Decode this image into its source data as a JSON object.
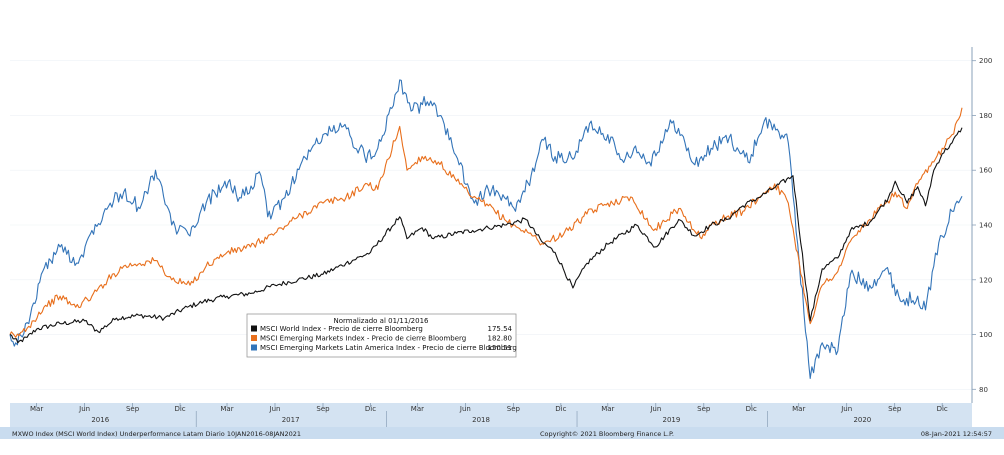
{
  "chart_data": {
    "type": "line",
    "legend_title": "Normalizado al 01/11/2016",
    "legend_placement": "center-left",
    "y_axis_side": "right",
    "ylim": [
      75,
      205
    ],
    "y_ticks": [
      80,
      100,
      120,
      140,
      160,
      180,
      200
    ],
    "x_range": [
      "2016-01-10",
      "2021-01-08"
    ],
    "x_month_ticks": [
      {
        "label": "Mar",
        "date": "2016-03-01"
      },
      {
        "label": "Jun",
        "date": "2016-06-01"
      },
      {
        "label": "Sep",
        "date": "2016-09-01"
      },
      {
        "label": "Dic",
        "date": "2016-12-01"
      },
      {
        "label": "Mar",
        "date": "2017-03-01"
      },
      {
        "label": "Jun",
        "date": "2017-06-01"
      },
      {
        "label": "Sep",
        "date": "2017-09-01"
      },
      {
        "label": "Dic",
        "date": "2017-12-01"
      },
      {
        "label": "Mar",
        "date": "2018-03-01"
      },
      {
        "label": "Jun",
        "date": "2018-06-01"
      },
      {
        "label": "Sep",
        "date": "2018-09-01"
      },
      {
        "label": "Dic",
        "date": "2018-12-01"
      },
      {
        "label": "Mar",
        "date": "2019-03-01"
      },
      {
        "label": "Jun",
        "date": "2019-06-01"
      },
      {
        "label": "Sep",
        "date": "2019-09-01"
      },
      {
        "label": "Dic",
        "date": "2019-12-01"
      },
      {
        "label": "Mar",
        "date": "2020-03-01"
      },
      {
        "label": "Jun",
        "date": "2020-06-01"
      },
      {
        "label": "Sep",
        "date": "2020-09-01"
      },
      {
        "label": "Dic",
        "date": "2020-12-01"
      }
    ],
    "x_year_labels": [
      {
        "label": "2016",
        "date": "2016-07-01"
      },
      {
        "label": "2017",
        "date": "2017-07-01"
      },
      {
        "label": "2018",
        "date": "2018-07-01"
      },
      {
        "label": "2019",
        "date": "2019-07-01"
      },
      {
        "label": "2020",
        "date": "2020-07-01"
      }
    ],
    "series": [
      {
        "name": "MSCI World Index - Precio de cierre Bloomberg",
        "last_value": "175.54",
        "color": "#111111",
        "points": [
          [
            "2016-01-10",
            100
          ],
          [
            "2016-01-25",
            97
          ],
          [
            "2016-02-12",
            99
          ],
          [
            "2016-03-01",
            102
          ],
          [
            "2016-04-15",
            104
          ],
          [
            "2016-06-01",
            105
          ],
          [
            "2016-06-27",
            101
          ],
          [
            "2016-08-01",
            106
          ],
          [
            "2016-09-15",
            107
          ],
          [
            "2016-11-01",
            106
          ],
          [
            "2016-12-15",
            110
          ],
          [
            "2017-01-15",
            112
          ],
          [
            "2017-03-01",
            114
          ],
          [
            "2017-04-15",
            115
          ],
          [
            "2017-06-01",
            118
          ],
          [
            "2017-07-15",
            120
          ],
          [
            "2017-09-01",
            122
          ],
          [
            "2017-10-15",
            126
          ],
          [
            "2017-12-01",
            130
          ],
          [
            "2018-01-26",
            143
          ],
          [
            "2018-02-09",
            135
          ],
          [
            "2018-03-10",
            139
          ],
          [
            "2018-04-01",
            135
          ],
          [
            "2018-05-15",
            137
          ],
          [
            "2018-06-15",
            138
          ],
          [
            "2018-07-15",
            139
          ],
          [
            "2018-08-15",
            140
          ],
          [
            "2018-09-25",
            142
          ],
          [
            "2018-10-25",
            134
          ],
          [
            "2018-11-20",
            130
          ],
          [
            "2018-12-24",
            117
          ],
          [
            "2019-01-20",
            126
          ],
          [
            "2019-03-01",
            133
          ],
          [
            "2019-04-25",
            140
          ],
          [
            "2019-05-31",
            132
          ],
          [
            "2019-07-15",
            142
          ],
          [
            "2019-08-15",
            136
          ],
          [
            "2019-09-15",
            140
          ],
          [
            "2019-10-15",
            142
          ],
          [
            "2019-11-15",
            147
          ],
          [
            "2019-12-15",
            150
          ],
          [
            "2020-01-17",
            154
          ],
          [
            "2020-02-19",
            158
          ],
          [
            "2020-03-23",
            105
          ],
          [
            "2020-04-15",
            124
          ],
          [
            "2020-05-15",
            128
          ],
          [
            "2020-06-08",
            138
          ],
          [
            "2020-07-15",
            141
          ],
          [
            "2020-08-20",
            150
          ],
          [
            "2020-09-02",
            156
          ],
          [
            "2020-09-25",
            148
          ],
          [
            "2020-10-15",
            154
          ],
          [
            "2020-10-30",
            147
          ],
          [
            "2020-11-15",
            160
          ],
          [
            "2020-12-01",
            166
          ],
          [
            "2020-12-20",
            170
          ],
          [
            "2021-01-08",
            175.54
          ]
        ]
      },
      {
        "name": "MSCI Emerging Markets Index - Precio de cierre Bloomberg",
        "last_value": "182.80",
        "color": "#e86f1c",
        "points": [
          [
            "2016-01-10",
            100
          ],
          [
            "2016-01-21",
            99
          ],
          [
            "2016-02-15",
            103
          ],
          [
            "2016-03-15",
            110
          ],
          [
            "2016-04-15",
            114
          ],
          [
            "2016-05-15",
            110
          ],
          [
            "2016-06-15",
            114
          ],
          [
            "2016-07-15",
            120
          ],
          [
            "2016-08-15",
            125
          ],
          [
            "2016-09-15",
            126
          ],
          [
            "2016-10-15",
            127
          ],
          [
            "2016-11-15",
            120
          ],
          [
            "2016-12-20",
            118
          ],
          [
            "2017-01-20",
            125
          ],
          [
            "2017-03-01",
            130
          ],
          [
            "2017-04-15",
            132
          ],
          [
            "2017-06-01",
            137
          ],
          [
            "2017-07-15",
            143
          ],
          [
            "2017-09-01",
            148
          ],
          [
            "2017-10-15",
            150
          ],
          [
            "2017-11-25",
            155
          ],
          [
            "2017-12-15",
            153
          ],
          [
            "2018-01-26",
            176
          ],
          [
            "2018-02-09",
            160
          ],
          [
            "2018-03-10",
            165
          ],
          [
            "2018-04-10",
            163
          ],
          [
            "2018-05-15",
            156
          ],
          [
            "2018-06-15",
            150
          ],
          [
            "2018-07-15",
            147
          ],
          [
            "2018-08-15",
            142
          ],
          [
            "2018-09-10",
            139
          ],
          [
            "2018-10-10",
            136
          ],
          [
            "2018-10-29",
            133
          ],
          [
            "2018-12-15",
            138
          ],
          [
            "2019-01-20",
            144
          ],
          [
            "2019-03-01",
            148
          ],
          [
            "2019-04-17",
            150
          ],
          [
            "2019-05-28",
            138
          ],
          [
            "2019-07-15",
            146
          ],
          [
            "2019-08-28",
            135
          ],
          [
            "2019-09-15",
            140
          ],
          [
            "2019-10-15",
            143
          ],
          [
            "2019-11-15",
            145
          ],
          [
            "2019-12-15",
            150
          ],
          [
            "2020-01-15",
            155
          ],
          [
            "2020-02-10",
            148
          ],
          [
            "2020-03-23",
            104
          ],
          [
            "2020-04-15",
            118
          ],
          [
            "2020-05-15",
            123
          ],
          [
            "2020-06-08",
            134
          ],
          [
            "2020-07-15",
            142
          ],
          [
            "2020-08-15",
            148
          ],
          [
            "2020-09-02",
            152
          ],
          [
            "2020-09-25",
            146
          ],
          [
            "2020-10-15",
            155
          ],
          [
            "2020-11-15",
            163
          ],
          [
            "2020-12-01",
            168
          ],
          [
            "2020-12-20",
            173
          ],
          [
            "2021-01-08",
            182.8
          ]
        ]
      },
      {
        "name": "MSCI Emerging Markets Latin America Index - Precio de cierre Bloomberg",
        "last_value": "150.51",
        "color": "#3374b8",
        "points": [
          [
            "2016-01-10",
            100
          ],
          [
            "2016-01-21",
            97
          ],
          [
            "2016-02-15",
            104
          ],
          [
            "2016-03-10",
            122
          ],
          [
            "2016-04-15",
            132
          ],
          [
            "2016-05-20",
            126
          ],
          [
            "2016-06-15",
            138
          ],
          [
            "2016-07-20",
            148
          ],
          [
            "2016-08-15",
            152
          ],
          [
            "2016-09-15",
            146
          ],
          [
            "2016-10-15",
            160
          ],
          [
            "2016-11-15",
            140
          ],
          [
            "2016-12-20",
            136
          ],
          [
            "2017-01-20",
            148
          ],
          [
            "2017-02-25",
            156
          ],
          [
            "2017-03-25",
            150
          ],
          [
            "2017-05-05",
            158
          ],
          [
            "2017-05-18",
            143
          ],
          [
            "2017-06-20",
            150
          ],
          [
            "2017-07-20",
            162
          ],
          [
            "2017-09-01",
            173
          ],
          [
            "2017-10-10",
            176
          ],
          [
            "2017-11-20",
            165
          ],
          [
            "2017-12-15",
            168
          ],
          [
            "2018-01-26",
            193
          ],
          [
            "2018-02-20",
            182
          ],
          [
            "2018-03-20",
            185
          ],
          [
            "2018-04-15",
            180
          ],
          [
            "2018-05-20",
            162
          ],
          [
            "2018-06-18",
            148
          ],
          [
            "2018-07-15",
            153
          ],
          [
            "2018-08-15",
            150
          ],
          [
            "2018-09-05",
            145
          ],
          [
            "2018-10-05",
            158
          ],
          [
            "2018-10-29",
            171
          ],
          [
            "2018-11-20",
            165
          ],
          [
            "2018-12-24",
            164
          ],
          [
            "2019-01-25",
            177
          ],
          [
            "2019-03-01",
            173
          ],
          [
            "2019-03-25",
            164
          ],
          [
            "2019-04-20",
            168
          ],
          [
            "2019-05-20",
            163
          ],
          [
            "2019-07-05",
            178
          ],
          [
            "2019-08-15",
            162
          ],
          [
            "2019-09-15",
            168
          ],
          [
            "2019-10-20",
            172
          ],
          [
            "2019-11-25",
            163
          ],
          [
            "2019-12-26",
            178
          ],
          [
            "2020-01-20",
            175
          ],
          [
            "2020-02-10",
            170
          ],
          [
            "2020-03-23",
            84
          ],
          [
            "2020-04-15",
            97
          ],
          [
            "2020-05-15",
            94
          ],
          [
            "2020-06-08",
            122
          ],
          [
            "2020-07-15",
            118
          ],
          [
            "2020-08-15",
            124
          ],
          [
            "2020-09-15",
            112
          ],
          [
            "2020-10-15",
            114
          ],
          [
            "2020-10-30",
            109
          ],
          [
            "2020-11-15",
            125
          ],
          [
            "2020-12-01",
            136
          ],
          [
            "2020-12-20",
            145
          ],
          [
            "2021-01-08",
            150.51
          ]
        ]
      }
    ]
  },
  "footer": {
    "left": "MXWO Index (MSCI World Index) Underperformance Latam  Diario 10JAN2016-08JAN2021",
    "center": "Copyright© 2021 Bloomberg Finance L.P.",
    "right": "08-Jan-2021 12:54:57"
  }
}
